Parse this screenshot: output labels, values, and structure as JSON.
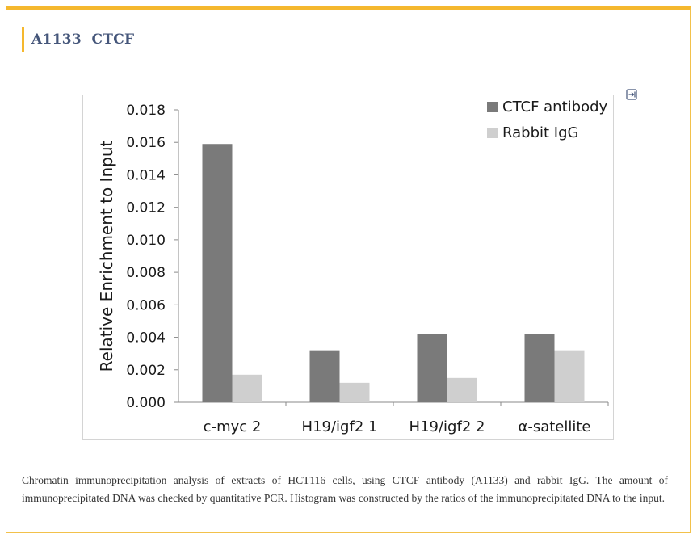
{
  "header": {
    "title": "A1133  CTCF"
  },
  "icons": {
    "expand": "expand-icon"
  },
  "chart_data": {
    "type": "bar",
    "title": "",
    "xlabel": "",
    "ylabel": "Relative Enrichment to Input",
    "categories": [
      "c-myc 2",
      "H19/igf2 1",
      "H19/igf2 2",
      "α-satellite"
    ],
    "series": [
      {
        "name": "CTCF antibody",
        "color": "#7a7a7a",
        "values": [
          0.0159,
          0.0032,
          0.0042,
          0.0042
        ]
      },
      {
        "name": "Rabbit IgG",
        "color": "#cfcfcf",
        "values": [
          0.0017,
          0.0012,
          0.0015,
          0.0032
        ]
      }
    ],
    "ylim": [
      0,
      0.018
    ],
    "yticks": [
      "0.000",
      "0.002",
      "0.004",
      "0.006",
      "0.008",
      "0.010",
      "0.012",
      "0.014",
      "0.016",
      "0.018"
    ],
    "grid": false,
    "legend": "top-right"
  },
  "caption": "Chromatin immunoprecipitation analysis of extracts of HCT116 cells, using CTCF antibody (A1133) and rabbit IgG. The amount of immunoprecipitated DNA was checked by quantitative PCR. Histogram was constructed by the ratios of the immunoprecipitated DNA to the input."
}
